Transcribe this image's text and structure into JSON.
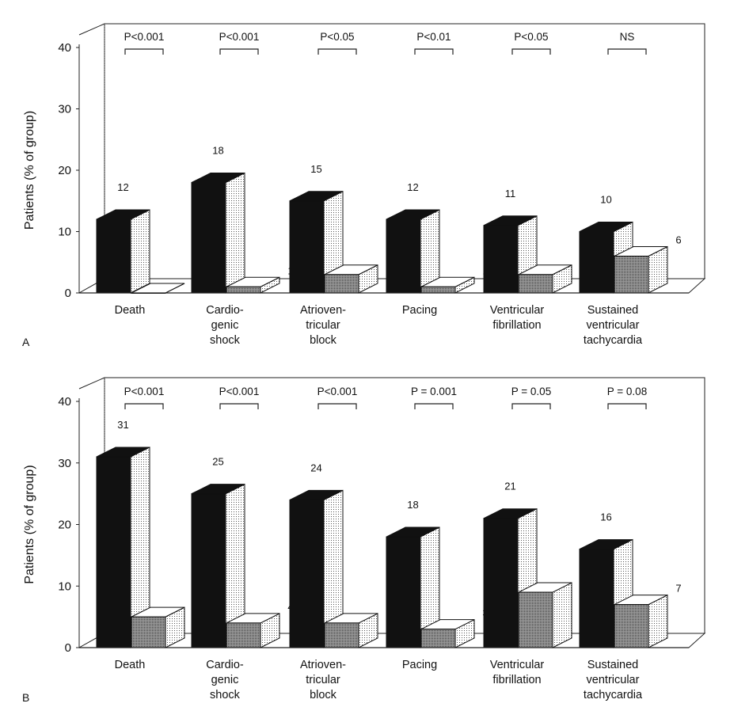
{
  "chart_data": [
    {
      "type": "bar",
      "panel_label": "A",
      "ylabel": "Patients (% of group)",
      "ylim": [
        0,
        40
      ],
      "yticks": [
        0,
        10,
        20,
        30,
        40
      ],
      "categories": [
        "Death",
        "Cardio-\ngenic\nshock",
        "Atrioven-\ntricular\nblock",
        "Pacing",
        "Ventricular\nfibrillation",
        "Sustained\nventricular\ntachycardia"
      ],
      "series": [
        {
          "values": [
            12,
            18,
            15,
            12,
            11,
            10
          ],
          "color": "#111111"
        },
        {
          "values": [
            0,
            1,
            3,
            1,
            3,
            6
          ],
          "color": "#9a9a9a"
        }
      ],
      "p_values": [
        "P<0.001",
        "P<0.001",
        "P<0.05",
        "P<0.01",
        "P<0.05",
        "NS"
      ]
    },
    {
      "type": "bar",
      "panel_label": "B",
      "ylabel": "Patients (% of group)",
      "ylim": [
        0,
        40
      ],
      "yticks": [
        0,
        10,
        20,
        30,
        40
      ],
      "categories": [
        "Death",
        "Cardio-\ngenic\nshock",
        "Atrioven-\ntricular\nblock",
        "Pacing",
        "Ventricular\nfibrillation",
        "Sustained\nventricular\ntachycardia"
      ],
      "series": [
        {
          "values": [
            31,
            25,
            24,
            18,
            21,
            16
          ],
          "color": "#111111"
        },
        {
          "values": [
            5,
            4,
            4,
            3,
            9,
            7
          ],
          "color": "#9a9a9a"
        }
      ],
      "p_values": [
        "P<0.001",
        "P<0.001",
        "P<0.001",
        "P = 0.001",
        "P = 0.05",
        "P = 0.08"
      ]
    }
  ]
}
